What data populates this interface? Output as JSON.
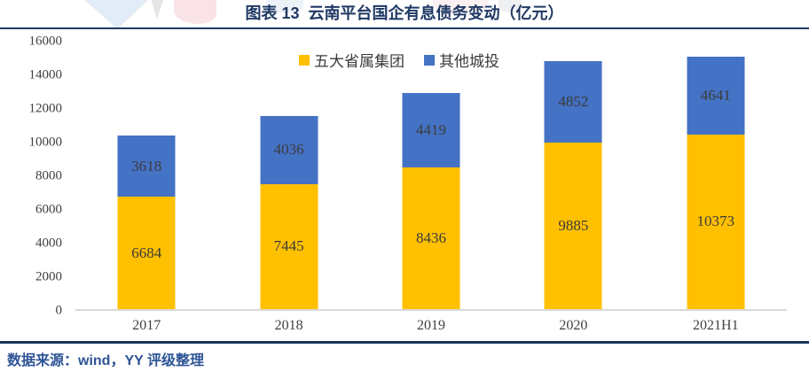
{
  "header": {
    "title": "图表 13  云南平台国企有息债务变动（亿元）"
  },
  "footer": {
    "source": "数据来源：wind，YY 评级整理"
  },
  "colors": {
    "series_provincial": "#FFC000",
    "series_other": "#4472C4",
    "title_navy": "#1F3864",
    "footer_line": "#17375E",
    "footer_text": "#2E5596",
    "axis_line": "#D9D9D9",
    "label_text": "#3B3B3B"
  },
  "chart_data": {
    "type": "bar",
    "stacked": true,
    "title": "图表 13  云南平台国企有息债务变动（亿元）",
    "categories": [
      "2017",
      "2018",
      "2019",
      "2020",
      "2021H1"
    ],
    "series": [
      {
        "name": "五大省属集团",
        "color": "#FFC000",
        "values": [
          6684,
          7445,
          8436,
          9885,
          10373
        ]
      },
      {
        "name": "其他城投",
        "color": "#4472C4",
        "values": [
          3618,
          4036,
          4419,
          4852,
          4641
        ]
      }
    ],
    "xlabel": "",
    "ylabel": "",
    "ylim": [
      0,
      16000
    ],
    "ytick_step": 2000,
    "yticks": [
      0,
      2000,
      4000,
      6000,
      8000,
      10000,
      12000,
      14000,
      16000
    ],
    "grid": false,
    "legend_position": "top-center",
    "data_labels": "inside-center"
  }
}
